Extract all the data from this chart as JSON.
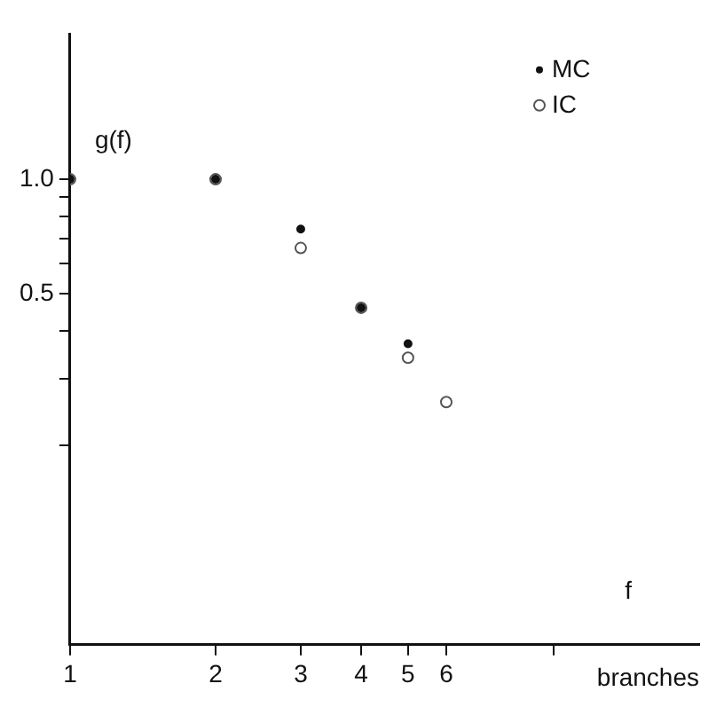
{
  "chart_data": {
    "type": "scatter",
    "ylabel": "g(f)",
    "xlabel": "branches",
    "annotations": [
      "f"
    ],
    "log": "xy",
    "xlim": [
      1,
      20
    ],
    "ylim": [
      0.06,
      2.4
    ],
    "xticks": [
      1,
      2,
      3,
      4,
      5,
      6,
      {
        "value": 10,
        "label": null
      }
    ],
    "yticks": [
      {
        "value": 1.0,
        "label": "1.0"
      },
      {
        "value": 0.9,
        "label": null
      },
      {
        "value": 0.8,
        "label": null
      },
      {
        "value": 0.7,
        "label": null
      },
      {
        "value": 0.6,
        "label": null
      },
      {
        "value": 0.5,
        "label": "0.5"
      },
      {
        "value": 0.4,
        "label": null
      },
      {
        "value": 0.3,
        "label": null
      },
      {
        "value": 0.2,
        "label": null
      }
    ],
    "grid": false,
    "legend": "top right",
    "series": [
      {
        "name": "MC",
        "color": "#111111",
        "marker": "circle",
        "x": [
          1,
          2,
          3,
          4,
          5
        ],
        "values": [
          1.0,
          1.0,
          0.74,
          0.46,
          0.37
        ]
      },
      {
        "name": "IC",
        "color": "#555555",
        "marker": "circle_open",
        "x": [
          1,
          2,
          3,
          4,
          5,
          6
        ],
        "values": [
          1.0,
          1.0,
          0.66,
          0.46,
          0.34,
          0.26
        ]
      }
    ]
  }
}
